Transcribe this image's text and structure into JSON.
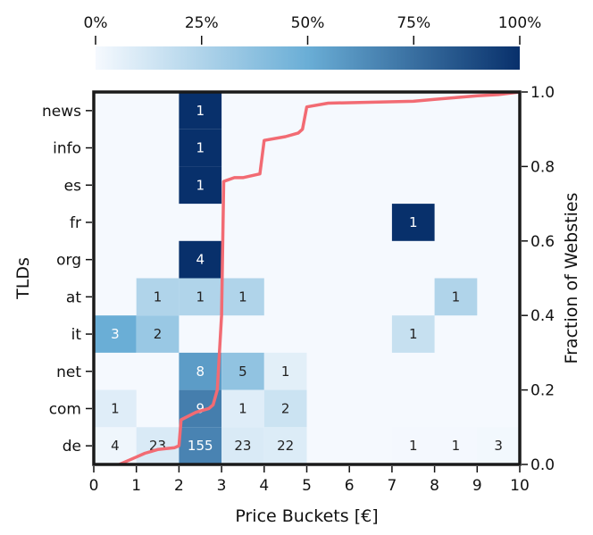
{
  "chart_data": {
    "type": "heatmap",
    "xlabel": "Price Buckets [€]",
    "ylabel": "TLDs",
    "y2label": "Fraction of Websties",
    "x_ticks": [
      0,
      1,
      2,
      3,
      4,
      5,
      6,
      7,
      8,
      9,
      10
    ],
    "y2_ticks": [
      "0.0",
      "0.2",
      "0.4",
      "0.6",
      "0.8",
      "1.0"
    ],
    "xlim": [
      0,
      10
    ],
    "y2lim": [
      0,
      1
    ],
    "rows": [
      "news",
      "info",
      "es",
      "fr",
      "org",
      "at",
      "it",
      "net",
      "com",
      "de"
    ],
    "colorbar": {
      "ticks": [
        "0%",
        "25%",
        "50%",
        "75%",
        "100%"
      ],
      "colors": {
        "low": "#f5f9fe",
        "mid": "#6aaed6",
        "high": "#08306b"
      }
    },
    "cells": [
      {
        "row": "news",
        "bucket": 2,
        "count": "1",
        "fraction": 1.0
      },
      {
        "row": "info",
        "bucket": 2,
        "count": "1",
        "fraction": 1.0
      },
      {
        "row": "es",
        "bucket": 2,
        "count": "1",
        "fraction": 1.0
      },
      {
        "row": "fr",
        "bucket": 7,
        "count": "1",
        "fraction": 1.0
      },
      {
        "row": "org",
        "bucket": 2,
        "count": "4",
        "fraction": 1.0
      },
      {
        "row": "at",
        "bucket": 1,
        "count": "1",
        "fraction": 0.25
      },
      {
        "row": "at",
        "bucket": 2,
        "count": "1",
        "fraction": 0.25
      },
      {
        "row": "at",
        "bucket": 3,
        "count": "1",
        "fraction": 0.25
      },
      {
        "row": "at",
        "bucket": 8,
        "count": "1",
        "fraction": 0.25
      },
      {
        "row": "it",
        "bucket": 0,
        "count": "3",
        "fraction": 0.5
      },
      {
        "row": "it",
        "bucket": 1,
        "count": "2",
        "fraction": 0.33
      },
      {
        "row": "it",
        "bucket": 7,
        "count": "1",
        "fraction": 0.17
      },
      {
        "row": "net",
        "bucket": 2,
        "count": "8",
        "fraction": 0.57
      },
      {
        "row": "net",
        "bucket": 3,
        "count": "5",
        "fraction": 0.36
      },
      {
        "row": "net",
        "bucket": 4,
        "count": "1",
        "fraction": 0.07
      },
      {
        "row": "com",
        "bucket": 0,
        "count": "1",
        "fraction": 0.08
      },
      {
        "row": "com",
        "bucket": 2,
        "count": "9",
        "fraction": 0.69
      },
      {
        "row": "com",
        "bucket": 3,
        "count": "1",
        "fraction": 0.08
      },
      {
        "row": "com",
        "bucket": 4,
        "count": "2",
        "fraction": 0.15
      },
      {
        "row": "de",
        "bucket": 0,
        "count": "4",
        "fraction": 0.02
      },
      {
        "row": "de",
        "bucket": 1,
        "count": "23",
        "fraction": 0.1
      },
      {
        "row": "de",
        "bucket": 2,
        "count": "155",
        "fraction": 0.67
      },
      {
        "row": "de",
        "bucket": 3,
        "count": "23",
        "fraction": 0.1
      },
      {
        "row": "de",
        "bucket": 4,
        "count": "22",
        "fraction": 0.09
      },
      {
        "row": "de",
        "bucket": 7,
        "count": "1",
        "fraction": 0.005
      },
      {
        "row": "de",
        "bucket": 8,
        "count": "1",
        "fraction": 0.005
      },
      {
        "row": "de",
        "bucket": 9,
        "count": "3",
        "fraction": 0.01
      }
    ],
    "cdf": {
      "color": "#f26b73",
      "points": [
        [
          0.6,
          0.0
        ],
        [
          0.8,
          0.01
        ],
        [
          1.0,
          0.02
        ],
        [
          1.2,
          0.03
        ],
        [
          1.5,
          0.04
        ],
        [
          1.9,
          0.045
        ],
        [
          2.0,
          0.05
        ],
        [
          2.05,
          0.12
        ],
        [
          2.4,
          0.14
        ],
        [
          2.7,
          0.15
        ],
        [
          2.8,
          0.16
        ],
        [
          2.9,
          0.2
        ],
        [
          3.0,
          0.4
        ],
        [
          3.05,
          0.76
        ],
        [
          3.3,
          0.77
        ],
        [
          3.5,
          0.77
        ],
        [
          3.9,
          0.78
        ],
        [
          4.0,
          0.87
        ],
        [
          4.5,
          0.88
        ],
        [
          4.8,
          0.89
        ],
        [
          4.9,
          0.9
        ],
        [
          5.0,
          0.96
        ],
        [
          5.5,
          0.97
        ],
        [
          7.5,
          0.975
        ],
        [
          8.0,
          0.98
        ],
        [
          8.5,
          0.985
        ],
        [
          9.0,
          0.99
        ],
        [
          9.5,
          0.993
        ],
        [
          10.0,
          1.0
        ]
      ]
    }
  }
}
